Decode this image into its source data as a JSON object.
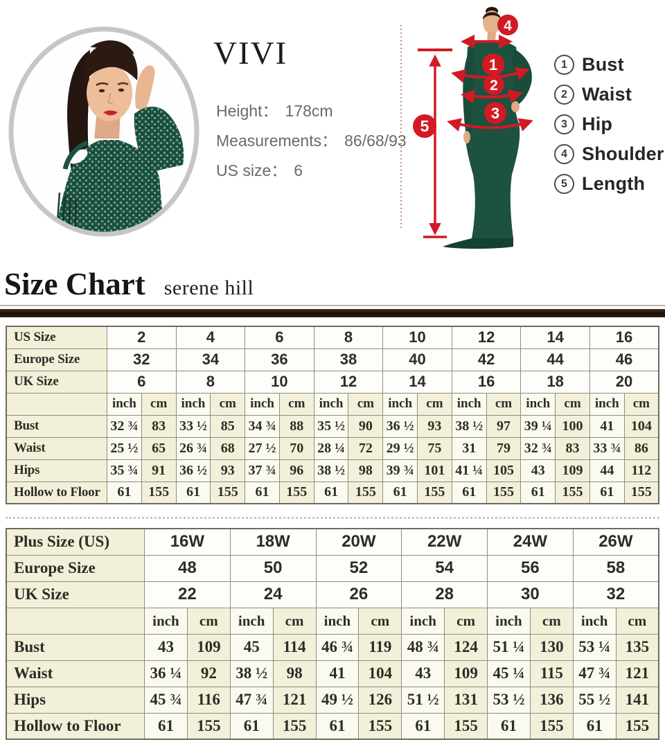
{
  "model_info": {
    "brand": "VIVI",
    "height_label": "Height：",
    "height_value": "178cm",
    "measurements_label": "Measurements：",
    "measurements_value": "86/68/93",
    "us_size_label": "US size：",
    "us_size_value": "6"
  },
  "measure_guide": {
    "markers": [
      "1",
      "2",
      "3",
      "4",
      "5"
    ],
    "legend": [
      {
        "num": "1",
        "label": "Bust"
      },
      {
        "num": "2",
        "label": "Waist"
      },
      {
        "num": "3",
        "label": "Hip"
      },
      {
        "num": "4",
        "label": "Shoulder"
      },
      {
        "num": "5",
        "label": "Length"
      }
    ]
  },
  "size_chart": {
    "title": "Size Chart",
    "subtitle": "serene hill"
  },
  "standard_table": {
    "size_rows": [
      {
        "label": "US Size",
        "values": [
          "2",
          "4",
          "6",
          "8",
          "10",
          "12",
          "14",
          "16"
        ]
      },
      {
        "label": "Europe Size",
        "values": [
          "32",
          "34",
          "36",
          "38",
          "40",
          "42",
          "44",
          "46"
        ]
      },
      {
        "label": "UK Size",
        "values": [
          "6",
          "8",
          "10",
          "12",
          "14",
          "16",
          "18",
          "20"
        ]
      }
    ],
    "units": [
      "inch",
      "cm"
    ],
    "measure_rows": [
      {
        "label": "Bust",
        "pairs": [
          [
            "32 ¾",
            "83"
          ],
          [
            "33 ½",
            "85"
          ],
          [
            "34 ¾",
            "88"
          ],
          [
            "35 ½",
            "90"
          ],
          [
            "36 ½",
            "93"
          ],
          [
            "38 ½",
            "97"
          ],
          [
            "39 ¼",
            "100"
          ],
          [
            "41",
            "104"
          ]
        ]
      },
      {
        "label": "Waist",
        "pairs": [
          [
            "25 ½",
            "65"
          ],
          [
            "26 ¾",
            "68"
          ],
          [
            "27 ½",
            "70"
          ],
          [
            "28 ¼",
            "72"
          ],
          [
            "29 ½",
            "75"
          ],
          [
            "31",
            "79"
          ],
          [
            "32 ¾",
            "83"
          ],
          [
            "33 ¾",
            "86"
          ]
        ]
      },
      {
        "label": "Hips",
        "pairs": [
          [
            "35 ¾",
            "91"
          ],
          [
            "36 ½",
            "93"
          ],
          [
            "37 ¾",
            "96"
          ],
          [
            "38 ½",
            "98"
          ],
          [
            "39 ¾",
            "101"
          ],
          [
            "41 ¼",
            "105"
          ],
          [
            "43",
            "109"
          ],
          [
            "44",
            "112"
          ]
        ]
      },
      {
        "label": "Hollow to Floor",
        "pairs": [
          [
            "61",
            "155"
          ],
          [
            "61",
            "155"
          ],
          [
            "61",
            "155"
          ],
          [
            "61",
            "155"
          ],
          [
            "61",
            "155"
          ],
          [
            "61",
            "155"
          ],
          [
            "61",
            "155"
          ],
          [
            "61",
            "155"
          ]
        ]
      }
    ]
  },
  "plus_table": {
    "size_rows": [
      {
        "label": "Plus Size (US)",
        "values": [
          "16W",
          "18W",
          "20W",
          "22W",
          "24W",
          "26W"
        ]
      },
      {
        "label": "Europe Size",
        "values": [
          "48",
          "50",
          "52",
          "54",
          "56",
          "58"
        ]
      },
      {
        "label": "UK Size",
        "values": [
          "22",
          "24",
          "26",
          "28",
          "30",
          "32"
        ]
      }
    ],
    "units": [
      "inch",
      "cm"
    ],
    "measure_rows": [
      {
        "label": "Bust",
        "pairs": [
          [
            "43",
            "109"
          ],
          [
            "45",
            "114"
          ],
          [
            "46 ¾",
            "119"
          ],
          [
            "48 ¾",
            "124"
          ],
          [
            "51 ¼",
            "130"
          ],
          [
            "53 ¼",
            "135"
          ]
        ]
      },
      {
        "label": "Waist",
        "pairs": [
          [
            "36 ¼",
            "92"
          ],
          [
            "38 ½",
            "98"
          ],
          [
            "41",
            "104"
          ],
          [
            "43",
            "109"
          ],
          [
            "45 ¼",
            "115"
          ],
          [
            "47 ¾",
            "121"
          ]
        ]
      },
      {
        "label": "Hips",
        "pairs": [
          [
            "45 ¾",
            "116"
          ],
          [
            "47 ¾",
            "121"
          ],
          [
            "49 ½",
            "126"
          ],
          [
            "51 ½",
            "131"
          ],
          [
            "53 ½",
            "136"
          ],
          [
            "55 ½",
            "141"
          ]
        ]
      },
      {
        "label": "Hollow to Floor",
        "pairs": [
          [
            "61",
            "155"
          ],
          [
            "61",
            "155"
          ],
          [
            "61",
            "155"
          ],
          [
            "61",
            "155"
          ],
          [
            "61",
            "155"
          ],
          [
            "61",
            "155"
          ]
        ]
      }
    ]
  },
  "colors": {
    "accent_red": "#d11a24",
    "table_cream": "#f3f0da",
    "divider_dark": "#241711",
    "dress_green": "#1c523f"
  }
}
